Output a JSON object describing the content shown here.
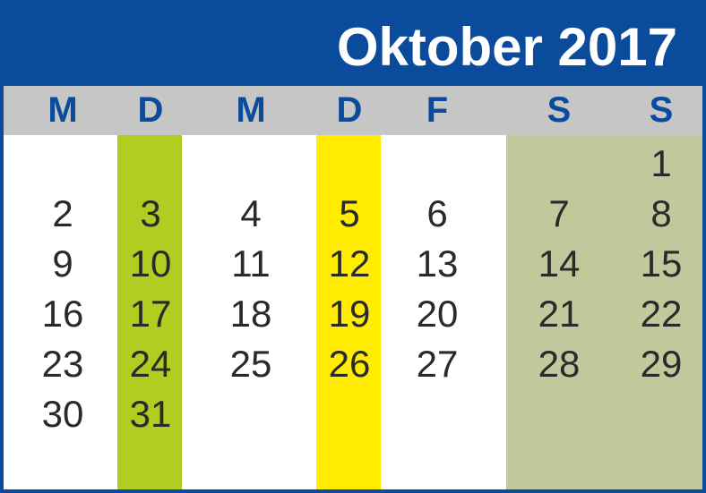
{
  "title": "Oktober 2017",
  "weekdays": [
    "M",
    "D",
    "M",
    "D",
    "F",
    "S",
    "S"
  ],
  "weeks": [
    [
      "",
      "",
      "",
      "",
      "",
      "",
      "1"
    ],
    [
      "2",
      "3",
      "4",
      "5",
      "6",
      "7",
      "8"
    ],
    [
      "9",
      "10",
      "11",
      "12",
      "13",
      "14",
      "15"
    ],
    [
      "16",
      "17",
      "18",
      "19",
      "20",
      "21",
      "22"
    ],
    [
      "23",
      "24",
      "25",
      "26",
      "27",
      "28",
      "29"
    ],
    [
      "30",
      "31",
      "",
      "",
      "",
      "",
      ""
    ]
  ],
  "colors": {
    "frame": "#0a4b9c",
    "weekday_header": "#c6c6c6",
    "tuesday_highlight": "#b3cc21",
    "thursday_highlight": "#ffec00",
    "weekend_highlight": "#c0c99c"
  }
}
